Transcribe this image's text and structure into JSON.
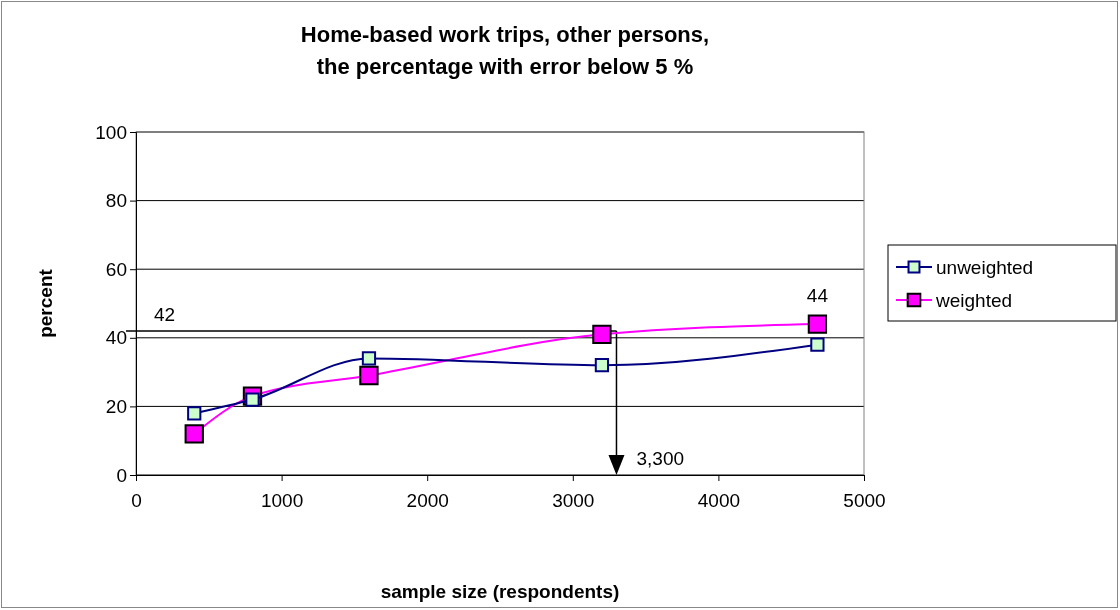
{
  "chart_data": {
    "type": "line",
    "title": "Home-based work trips, other persons,\nthe percentage with error below 5 %",
    "xlabel": "sample size (respondents)",
    "ylabel": "percent",
    "x": [
      400,
      800,
      1600,
      3200,
      4680
    ],
    "series": [
      {
        "name": "unweighted",
        "color": "#000080",
        "values": [
          18,
          22,
          34,
          32,
          38
        ]
      },
      {
        "name": "weighted",
        "color": "#ff00ff",
        "values": [
          12,
          23,
          29,
          41,
          44
        ]
      }
    ],
    "xlim": [
      0,
      5000
    ],
    "xticks": [
      0,
      1000,
      2000,
      3000,
      4000,
      5000
    ],
    "ylim": [
      0,
      100
    ],
    "yticks": [
      0,
      20,
      40,
      60,
      80,
      100
    ],
    "ref_lines": [
      {
        "axis": "y",
        "value": 42,
        "label": "42",
        "color": "#000000"
      },
      {
        "axis": "x",
        "value": 3300,
        "label": "3,300",
        "color": "#000000"
      }
    ],
    "annotations": [
      {
        "text": "44",
        "x": 4680,
        "y": 44
      }
    ],
    "grid": "y",
    "legend": "right",
    "marker": "square"
  }
}
